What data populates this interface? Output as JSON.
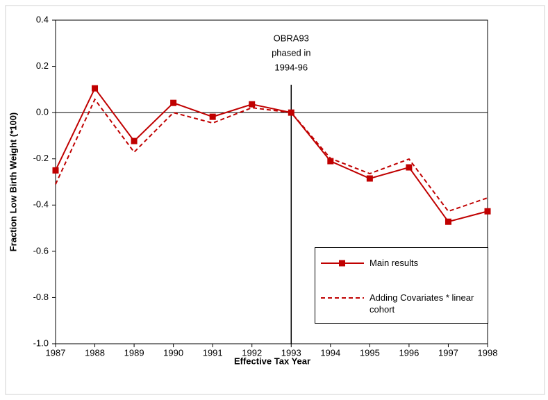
{
  "chart_data": {
    "type": "line",
    "x": [
      1987,
      1988,
      1989,
      1990,
      1991,
      1992,
      1993,
      1994,
      1995,
      1996,
      1997,
      1998
    ],
    "series": [
      {
        "name": "Main results",
        "color": "#c00000",
        "style": "solid",
        "marker": "square",
        "values": [
          -0.25,
          0.105,
          -0.123,
          0.042,
          -0.018,
          0.036,
          0,
          -0.21,
          -0.285,
          -0.237,
          -0.472,
          -0.427
        ]
      },
      {
        "name": "Adding Covariates * linear cohort",
        "color": "#c00000",
        "style": "dashed",
        "values": [
          -0.31,
          0.057,
          -0.171,
          0,
          -0.045,
          0.021,
          0,
          -0.198,
          -0.264,
          -0.201,
          -0.427,
          -0.369
        ]
      }
    ],
    "xlim": [
      1987,
      1998
    ],
    "xticks": [
      1987,
      1988,
      1989,
      1990,
      1991,
      1992,
      1993,
      1994,
      1995,
      1996,
      1997,
      1998
    ],
    "ylim": [
      -1,
      0.4
    ],
    "yticks": [
      0.4,
      0.2,
      {
        "value": 0,
        "label": "0.0"
      },
      -0.2,
      -0.4,
      -0.6,
      -0.8,
      {
        "value": -1,
        "label": "-1.0"
      }
    ],
    "xlabel": "Effective Tax Year",
    "ylabel": "Fraction Low Birth Weight (*100)",
    "annotation": {
      "x": 1993,
      "lines": [
        "OBRA93",
        "phased in",
        "1994-96"
      ]
    }
  }
}
